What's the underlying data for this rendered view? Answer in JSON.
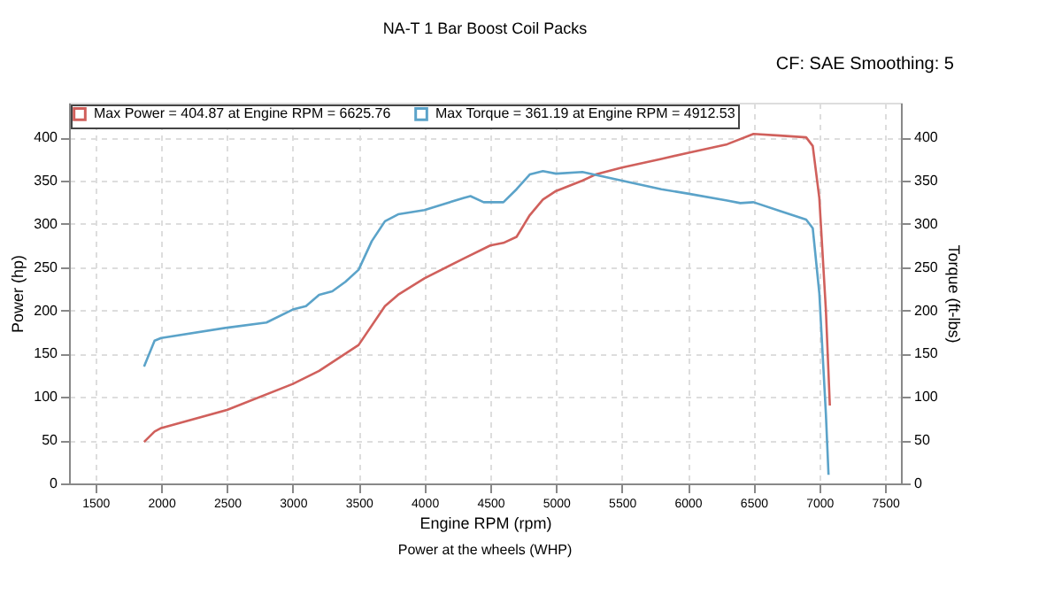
{
  "chart_data": {
    "type": "line",
    "subtitle": "NA-T 1 Bar Boost Coil Packs",
    "xlabel": "Engine RPM (rpm)",
    "ylabel": "Power (hp)",
    "y2label": "Torque (ft-lbs)",
    "annotations": [
      "CF: SAE Smoothing: 5",
      "Power at the wheels (WHP)"
    ],
    "xlim": [
      1300,
      7620
    ],
    "xticks": [
      1500,
      2000,
      2500,
      3000,
      3500,
      4000,
      4500,
      5000,
      5500,
      6000,
      6500,
      7000,
      7500
    ],
    "ylim": [
      0,
      440
    ],
    "yticks": [
      0,
      50,
      100,
      150,
      200,
      250,
      300,
      350,
      400
    ],
    "y2lim": [
      0,
      440
    ],
    "y2ticks": [
      0,
      50,
      100,
      150,
      200,
      250,
      300,
      350,
      400
    ],
    "grid": true,
    "legend": "top left",
    "marker": "none",
    "line_style": "solid",
    "series": [
      {
        "name": "Max Power = 404.87 at Engine RPM = 6625.76",
        "color": "#d0605c",
        "x": [
          1870,
          1950,
          2000,
          2500,
          3000,
          3200,
          3500,
          3700,
          3800,
          4000,
          4300,
          4500,
          4600,
          4700,
          4800,
          4900,
          5000,
          5200,
          5300,
          5500,
          5800,
          6000,
          6300,
          6500,
          6700,
          6900,
          6950,
          7000,
          7050,
          7080
        ],
        "values": [
          48,
          60,
          64,
          85,
          115,
          130,
          160,
          205,
          218,
          237,
          260,
          275,
          278,
          285,
          310,
          328,
          338,
          350,
          357,
          365,
          375,
          382,
          392,
          404,
          402,
          400,
          390,
          330,
          200,
          90
        ]
      },
      {
        "name": "Max Torque = 361.19 at Engine RPM = 4912.53",
        "color": "#5ba3c9",
        "axis": "y2",
        "x": [
          1870,
          1950,
          2000,
          2500,
          2800,
          3000,
          3100,
          3200,
          3300,
          3400,
          3500,
          3600,
          3700,
          3800,
          4000,
          4300,
          4350,
          4450,
          4600,
          4700,
          4800,
          4900,
          5000,
          5200,
          5500,
          5800,
          6000,
          6300,
          6400,
          6500,
          6700,
          6900,
          6950,
          7000,
          7050,
          7070
        ],
        "values": [
          135,
          165,
          168,
          180,
          186,
          201,
          205,
          218,
          222,
          233,
          247,
          280,
          303,
          311,
          316,
          330,
          332,
          325,
          325,
          340,
          357,
          361,
          358,
          360,
          350,
          340,
          335,
          327,
          324,
          325,
          315,
          305,
          295,
          220,
          80,
          10
        ]
      }
    ]
  }
}
